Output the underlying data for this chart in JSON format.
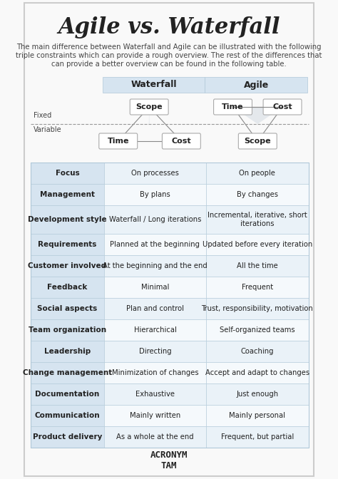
{
  "title": "Agile vs. Waterfall",
  "subtitle": "The main difference between Waterfall and Agile can be illustrated with the following\ntriple constraints which can provide a rough overview. The rest of the differences that\ncan provide a better overview can be found in the following table.",
  "col_headers": [
    "Waterfall",
    "Agile"
  ],
  "rows": [
    [
      "Focus",
      "On processes",
      "On people"
    ],
    [
      "Management",
      "By plans",
      "By changes"
    ],
    [
      "Development style",
      "Waterfall / Long iterations",
      "Incremental, iterative, short\niterations"
    ],
    [
      "Requirements",
      "Planned at the beginning",
      "Updated before every iteration"
    ],
    [
      "Customer involved",
      "At the beginning and the end",
      "All the time"
    ],
    [
      "Feedback",
      "Minimal",
      "Frequent"
    ],
    [
      "Social aspects",
      "Plan and control",
      "Trust, responsibility, motivation"
    ],
    [
      "Team organization",
      "Hierarchical",
      "Self-organized teams"
    ],
    [
      "Leadership",
      "Directing",
      "Coaching"
    ],
    [
      "Change management",
      "Minimization of changes",
      "Accept and adapt to changes"
    ],
    [
      "Documentation",
      "Exhaustive",
      "Just enough"
    ],
    [
      "Communication",
      "Mainly written",
      "Mainly personal"
    ],
    [
      "Product delivery",
      "As a whole at the end",
      "Frequent, but partial"
    ]
  ],
  "bg_color": "#f9f9f9",
  "header_bg": "#d6e4f0",
  "row_bg_odd": "#eaf2f8",
  "row_bg_even": "#f5f9fc",
  "col1_bg": "#d6e4f0",
  "border_color": "#b0c8d8",
  "text_dark": "#222222",
  "text_mid": "#444444",
  "box_fill": "#ffffff",
  "box_border": "#aaaaaa",
  "dashed_line_color": "#999999",
  "triangle_fill": "#d0d8e0"
}
